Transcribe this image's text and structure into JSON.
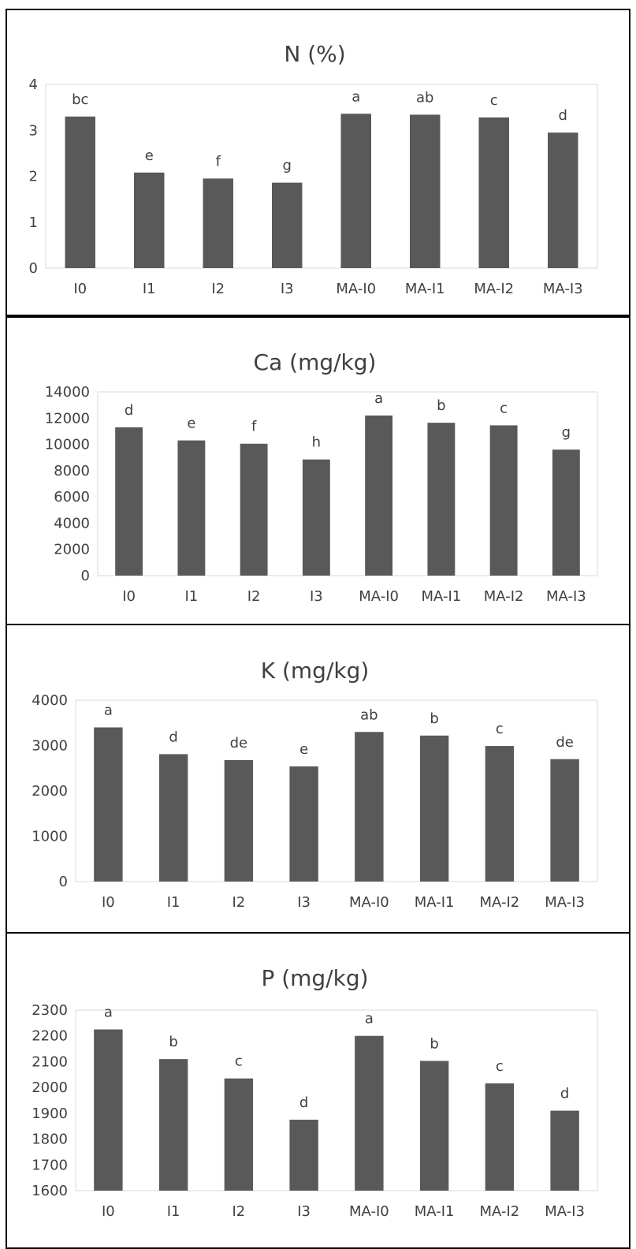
{
  "chart_data": [
    {
      "type": "bar",
      "title": "N (%)",
      "categories": [
        "I0",
        "I1",
        "I2",
        "I3",
        "MA-I0",
        "MA-I1",
        "MA-I2",
        "MA-I3"
      ],
      "values": [
        3.3,
        2.08,
        1.95,
        1.86,
        3.36,
        3.34,
        3.28,
        2.95
      ],
      "labels": [
        "bc",
        "e",
        "f",
        "g",
        "a",
        "ab",
        "c",
        "d"
      ],
      "ylim": [
        0,
        4
      ],
      "yticks": [
        "0",
        "1",
        "2",
        "3",
        "4"
      ],
      "bar_color": "#595959",
      "grid": false
    },
    {
      "type": "bar",
      "title": "Ca (mg/kg)",
      "categories": [
        "I0",
        "I1",
        "I2",
        "I3",
        "MA-I0",
        "MA-I1",
        "MA-I2",
        "MA-I3"
      ],
      "values": [
        11300,
        10300,
        10050,
        8850,
        12200,
        11650,
        11450,
        9600
      ],
      "labels": [
        "d",
        "e",
        "f",
        "h",
        "a",
        "b",
        "c",
        "g"
      ],
      "ylim": [
        0,
        14000
      ],
      "yticks": [
        "0",
        "2000",
        "4000",
        "6000",
        "8000",
        "10000",
        "12000",
        "14000"
      ],
      "bar_color": "#595959",
      "grid": false
    },
    {
      "type": "bar",
      "title": "K (mg/kg)",
      "categories": [
        "I0",
        "I1",
        "I2",
        "I3",
        "MA-I0",
        "MA-I1",
        "MA-I2",
        "MA-I3"
      ],
      "values": [
        3400,
        2810,
        2680,
        2540,
        3300,
        3220,
        2990,
        2700
      ],
      "labels": [
        "a",
        "d",
        "de",
        "e",
        "ab",
        "b",
        "c",
        "de"
      ],
      "ylim": [
        0,
        4000
      ],
      "yticks": [
        "0",
        "1000",
        "2000",
        "3000",
        "4000"
      ],
      "bar_color": "#595959",
      "grid": false
    },
    {
      "type": "bar",
      "title": "P (mg/kg)",
      "categories": [
        "I0",
        "I1",
        "I2",
        "I3",
        "MA-I0",
        "MA-I1",
        "MA-I2",
        "MA-I3"
      ],
      "values": [
        2225,
        2110,
        2035,
        1875,
        2200,
        2103,
        2016,
        1910
      ],
      "labels": [
        "a",
        "b",
        "c",
        "d",
        "a",
        "b",
        "c",
        "d"
      ],
      "ylim": [
        1600,
        2300
      ],
      "yticks": [
        "1600",
        "1700",
        "1800",
        "1900",
        "2000",
        "2100",
        "2200",
        "2300"
      ],
      "bar_color": "#595959",
      "grid": false
    }
  ]
}
